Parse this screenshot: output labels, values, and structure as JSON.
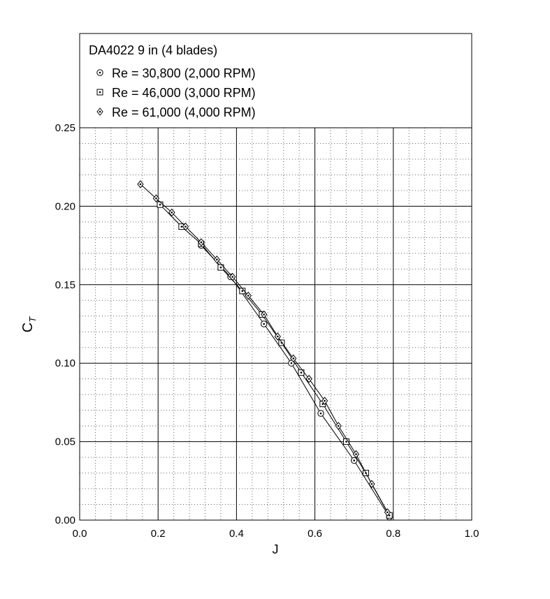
{
  "chart_data": {
    "type": "line",
    "title": "DA4022 9 in (4 blades)",
    "xlabel": "J",
    "ylabel": "C",
    "ylabel_sub": "T",
    "xlim": [
      0.0,
      1.0
    ],
    "ylim": [
      0.0,
      0.25
    ],
    "xticks": [
      "0.0",
      "0.2",
      "0.4",
      "0.6",
      "0.8",
      "1.0"
    ],
    "yticks": [
      "0.00",
      "0.05",
      "0.10",
      "0.15",
      "0.20",
      "0.25"
    ],
    "grid": true,
    "legend_position": "top",
    "series": [
      {
        "name": "Re = 30,800 (2,000 RPM)",
        "marker": "circle-dot",
        "points": [
          [
            0.31,
            0.175
          ],
          [
            0.385,
            0.155
          ],
          [
            0.47,
            0.125
          ],
          [
            0.54,
            0.1
          ],
          [
            0.615,
            0.068
          ],
          [
            0.7,
            0.038
          ],
          [
            0.79,
            0.002
          ]
        ]
      },
      {
        "name": "Re = 46,000 (3,000 RPM)",
        "marker": "square-dot",
        "points": [
          [
            0.205,
            0.201
          ],
          [
            0.26,
            0.187
          ],
          [
            0.31,
            0.176
          ],
          [
            0.36,
            0.161
          ],
          [
            0.415,
            0.146
          ],
          [
            0.465,
            0.131
          ],
          [
            0.515,
            0.113
          ],
          [
            0.565,
            0.094
          ],
          [
            0.62,
            0.074
          ],
          [
            0.68,
            0.05
          ],
          [
            0.73,
            0.03
          ],
          [
            0.79,
            0.003
          ]
        ]
      },
      {
        "name": "Re = 61,000 (4,000 RPM)",
        "marker": "diamond-dot",
        "points": [
          [
            0.155,
            0.214
          ],
          [
            0.195,
            0.205
          ],
          [
            0.235,
            0.196
          ],
          [
            0.27,
            0.187
          ],
          [
            0.31,
            0.177
          ],
          [
            0.35,
            0.166
          ],
          [
            0.39,
            0.155
          ],
          [
            0.43,
            0.143
          ],
          [
            0.47,
            0.131
          ],
          [
            0.505,
            0.117
          ],
          [
            0.545,
            0.103
          ],
          [
            0.585,
            0.09
          ],
          [
            0.625,
            0.076
          ],
          [
            0.66,
            0.06
          ],
          [
            0.705,
            0.042
          ],
          [
            0.745,
            0.023
          ],
          [
            0.785,
            0.005
          ]
        ]
      }
    ]
  }
}
